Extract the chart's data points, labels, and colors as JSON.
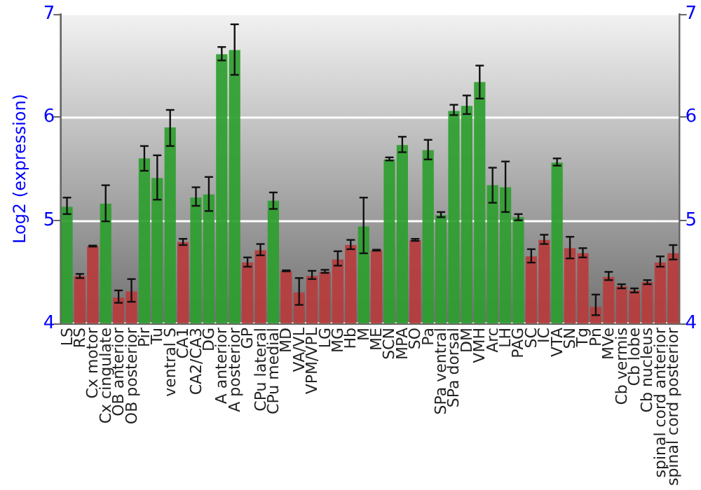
{
  "chart_data": {
    "type": "bar",
    "ylabel": "Log2 (expression)",
    "categories": [
      "LS",
      "RS",
      "Cx motor",
      "Cx cingulate",
      "OB anterior",
      "OB posterior",
      "Pir",
      "Tu",
      "ventral S",
      "CA1",
      "CA2/CA3",
      "DG",
      "A anterior",
      "A posterior",
      "GP",
      "CPu lateral",
      "CPu medial",
      "MD",
      "VA/VL",
      "VPM/VPL",
      "LG",
      "MG",
      "Hb",
      "M",
      "ME",
      "SCN",
      "MPA",
      "SO",
      "Pa",
      "SPa ventral",
      "SPa dorsal",
      "DM",
      "VMH",
      "Arc",
      "LH",
      "PAG",
      "SC",
      "IC",
      "VTA",
      "SN",
      "Tg",
      "Pn",
      "MVe",
      "Cb vermis",
      "Cb lobe",
      "Cb nucleus",
      "spinal cord anterior",
      "spinal cord posterior"
    ],
    "values": [
      5.13,
      4.46,
      4.75,
      5.16,
      4.25,
      4.31,
      5.6,
      5.41,
      5.9,
      4.79,
      5.22,
      5.25,
      6.61,
      6.65,
      4.59,
      4.71,
      5.19,
      4.51,
      4.3,
      4.46,
      4.5,
      4.62,
      4.76,
      4.94,
      4.71,
      5.59,
      5.73,
      4.81,
      5.68,
      5.05,
      6.06,
      6.11,
      6.34,
      5.34,
      5.32,
      5.03,
      4.65,
      4.81,
      5.56,
      4.73,
      4.68,
      4.16,
      4.45,
      4.36,
      4.32,
      4.4,
      4.59,
      4.68
    ],
    "errors": [
      [
        5.06,
        5.22
      ],
      [
        4.44,
        4.48
      ],
      [
        4.745,
        4.755
      ],
      [
        4.99,
        5.34
      ],
      [
        4.2,
        4.32
      ],
      [
        4.21,
        4.43
      ],
      [
        5.48,
        5.72
      ],
      [
        5.2,
        5.63
      ],
      [
        5.72,
        6.07
      ],
      [
        4.76,
        4.82
      ],
      [
        5.14,
        5.32
      ],
      [
        5.09,
        5.42
      ],
      [
        6.55,
        6.68
      ],
      [
        6.41,
        6.9
      ],
      [
        4.55,
        4.64
      ],
      [
        4.66,
        4.77
      ],
      [
        5.11,
        5.27
      ],
      [
        4.505,
        4.515
      ],
      [
        4.18,
        4.44
      ],
      [
        4.43,
        4.51
      ],
      [
        4.49,
        4.52
      ],
      [
        4.56,
        4.7
      ],
      [
        4.72,
        4.81
      ],
      [
        4.68,
        5.22
      ],
      [
        4.705,
        4.715
      ],
      [
        5.58,
        5.61
      ],
      [
        5.66,
        5.81
      ],
      [
        4.8,
        4.82
      ],
      [
        5.59,
        5.78
      ],
      [
        5.03,
        5.08
      ],
      [
        6.02,
        6.12
      ],
      [
        6.03,
        6.21
      ],
      [
        6.18,
        6.5
      ],
      [
        5.17,
        5.51
      ],
      [
        5.08,
        5.57
      ],
      [
        5.0,
        5.06
      ],
      [
        4.59,
        4.72
      ],
      [
        4.77,
        4.86
      ],
      [
        5.53,
        5.6
      ],
      [
        4.63,
        4.84
      ],
      [
        4.64,
        4.73
      ],
      [
        4.08,
        4.28
      ],
      [
        4.42,
        4.5
      ],
      [
        4.34,
        4.38
      ],
      [
        4.3,
        4.34
      ],
      [
        4.38,
        4.42
      ],
      [
        4.55,
        4.65
      ],
      [
        4.62,
        4.76
      ]
    ],
    "colors": [
      "#2e9e2e",
      "#b83c3c",
      "#b83c3c",
      "#2e9e2e",
      "#b83c3c",
      "#b83c3c",
      "#2e9e2e",
      "#2e9e2e",
      "#2e9e2e",
      "#b83c3c",
      "#2e9e2e",
      "#2e9e2e",
      "#2e9e2e",
      "#2e9e2e",
      "#b83c3c",
      "#b83c3c",
      "#2e9e2e",
      "#b83c3c",
      "#b83c3c",
      "#b83c3c",
      "#b83c3c",
      "#b83c3c",
      "#b83c3c",
      "#2e9e2e",
      "#b83c3c",
      "#2e9e2e",
      "#2e9e2e",
      "#b83c3c",
      "#2e9e2e",
      "#2e9e2e",
      "#2e9e2e",
      "#2e9e2e",
      "#2e9e2e",
      "#2e9e2e",
      "#2e9e2e",
      "#2e9e2e",
      "#b83c3c",
      "#b83c3c",
      "#2e9e2e",
      "#b83c3c",
      "#b83c3c",
      "#b83c3c",
      "#b83c3c",
      "#b83c3c",
      "#b83c3c",
      "#b83c3c",
      "#b83c3c",
      "#b83c3c"
    ],
    "ylim": [
      4,
      7
    ],
    "yticks": [
      4,
      5,
      6,
      7
    ],
    "y2lim": [
      4,
      7
    ],
    "y2ticks": [
      4,
      5,
      6,
      7
    ],
    "grid": "y"
  }
}
